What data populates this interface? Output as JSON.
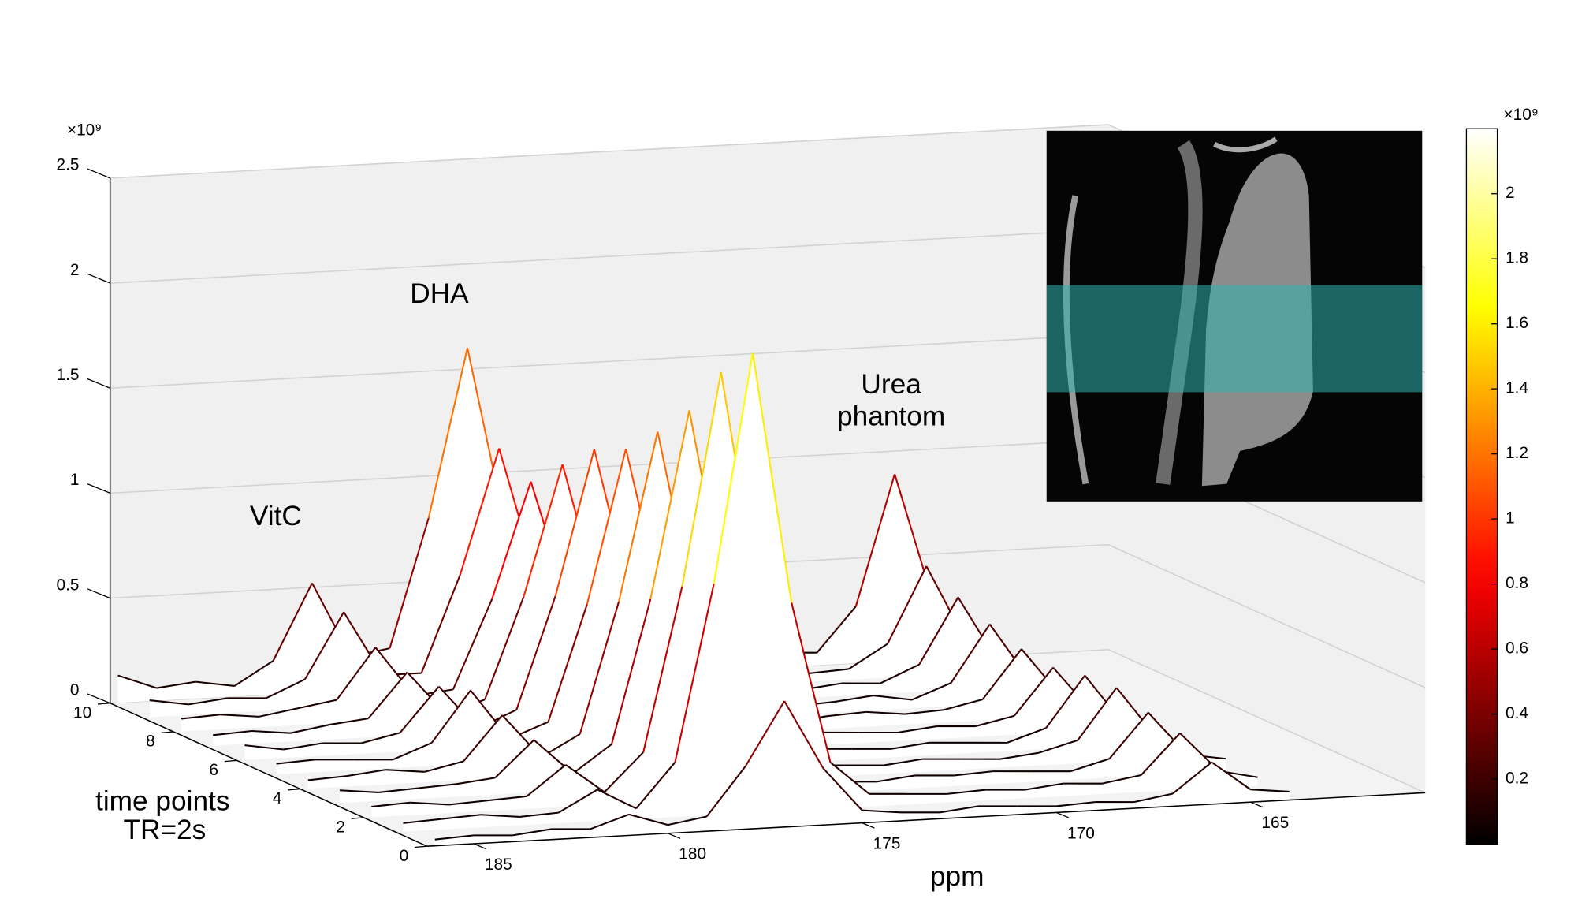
{
  "chart_data": {
    "type": "waterfall",
    "x": [
      186,
      185,
      184,
      183,
      182,
      181,
      180,
      179,
      178,
      177,
      176,
      175,
      174,
      173,
      172,
      171,
      170,
      169,
      168,
      167,
      166,
      165,
      164
    ],
    "xlim": [
      186.2,
      160.5
    ],
    "xticks": [
      185,
      180,
      175,
      170,
      165
    ],
    "xlabel": "ppm",
    "tlim": [
      0,
      10
    ],
    "tticks": [
      0,
      2,
      4,
      6,
      8,
      10
    ],
    "tlabel": [
      "time points",
      "TR=2s"
    ],
    "ylim": [
      0,
      2.5
    ],
    "yticks": [
      0,
      0.5,
      1,
      1.5,
      2,
      2.5
    ],
    "y_exponent": "×10⁹",
    "colormap": "hot",
    "clim": [
      0,
      2.2
    ],
    "cticks": [
      0.2,
      0.4,
      0.6,
      0.8,
      1,
      1.2,
      1.4,
      1.6,
      1.8,
      2
    ],
    "c_exponent": "×10⁹",
    "grid": true,
    "annotations": [
      "VitC",
      "DHA",
      "Urea",
      "phantom"
    ],
    "series": [
      {
        "t": 10,
        "values": [
          0.13,
          0.06,
          0.08,
          0.05,
          0.16,
          0.52,
          0.16,
          0.19,
          0.8,
          1.6,
          0.72,
          0.16,
          0.05,
          0.07,
          0.04,
          0.06,
          0.05,
          0.07,
          0.06,
          0.27,
          0.89,
          0.27,
          0.05
        ]
      },
      {
        "t": 9,
        "values": [
          0.08,
          0.05,
          0.07,
          0.06,
          0.14,
          0.45,
          0.14,
          0.14,
          0.6,
          1.19,
          0.54,
          0.12,
          0.06,
          0.04,
          0.07,
          0.05,
          0.06,
          0.04,
          0.05,
          0.16,
          0.52,
          0.16,
          0.06
        ]
      },
      {
        "t": 8,
        "values": [
          0.06,
          0.07,
          0.05,
          0.08,
          0.11,
          0.35,
          0.11,
          0.13,
          0.55,
          1.1,
          0.5,
          0.11,
          0.05,
          0.06,
          0.05,
          0.07,
          0.04,
          0.06,
          0.05,
          0.13,
          0.44,
          0.13,
          0.04
        ]
      },
      {
        "t": 7,
        "values": [
          0.05,
          0.06,
          0.04,
          0.07,
          0.09,
          0.3,
          0.09,
          0.15,
          0.63,
          1.25,
          0.56,
          0.13,
          0.07,
          0.05,
          0.06,
          0.04,
          0.05,
          0.07,
          0.04,
          0.11,
          0.38,
          0.11,
          0.05
        ]
      },
      {
        "t": 6,
        "values": [
          0.07,
          0.04,
          0.06,
          0.05,
          0.09,
          0.3,
          0.09,
          0.17,
          0.7,
          1.39,
          0.63,
          0.14,
          0.05,
          0.06,
          0.04,
          0.06,
          0.07,
          0.05,
          0.06,
          0.1,
          0.33,
          0.1,
          0.06
        ]
      },
      {
        "t": 5,
        "values": [
          0.05,
          0.06,
          0.05,
          0.04,
          0.11,
          0.35,
          0.11,
          0.18,
          0.73,
          1.46,
          0.66,
          0.15,
          0.06,
          0.04,
          0.06,
          0.05,
          0.04,
          0.06,
          0.05,
          0.09,
          0.31,
          0.09,
          0.05
        ]
      },
      {
        "t": 4,
        "values": [
          0.04,
          0.05,
          0.07,
          0.05,
          0.09,
          0.3,
          0.09,
          0.19,
          0.81,
          1.61,
          0.72,
          0.16,
          0.05,
          0.06,
          0.05,
          0.04,
          0.06,
          0.05,
          0.04,
          0.1,
          0.34,
          0.1,
          0.04
        ]
      },
      {
        "t": 3,
        "values": [
          0.06,
          0.04,
          0.05,
          0.06,
          0.08,
          0.25,
          0.08,
          0.21,
          0.89,
          1.78,
          0.8,
          0.18,
          0.06,
          0.05,
          0.04,
          0.06,
          0.05,
          0.04,
          0.06,
          0.11,
          0.35,
          0.11,
          0.05
        ]
      },
      {
        "t": 2,
        "values": [
          0.05,
          0.06,
          0.04,
          0.05,
          0.06,
          0.2,
          0.06,
          0.24,
          1.02,
          2.03,
          0.91,
          0.2,
          0.05,
          0.04,
          0.06,
          0.05,
          0.06,
          0.05,
          0.04,
          0.09,
          0.3,
          0.09,
          0.06
        ]
      },
      {
        "t": 1,
        "values": [
          0.04,
          0.05,
          0.06,
          0.04,
          0.05,
          0.15,
          0.05,
          0.26,
          1.1,
          2.19,
          0.99,
          0.22,
          0.06,
          0.05,
          0.04,
          0.05,
          0.04,
          0.06,
          0.05,
          0.08,
          0.27,
          0.08,
          0.04
        ]
      },
      {
        "t": 0,
        "values": [
          0.03,
          0.04,
          0.03,
          0.05,
          0.04,
          0.1,
          0.04,
          0.07,
          0.3,
          0.6,
          0.27,
          0.06,
          0.04,
          0.03,
          0.05,
          0.04,
          0.03,
          0.04,
          0.03,
          0.06,
          0.2,
          0.06,
          0.04
        ]
      }
    ]
  }
}
